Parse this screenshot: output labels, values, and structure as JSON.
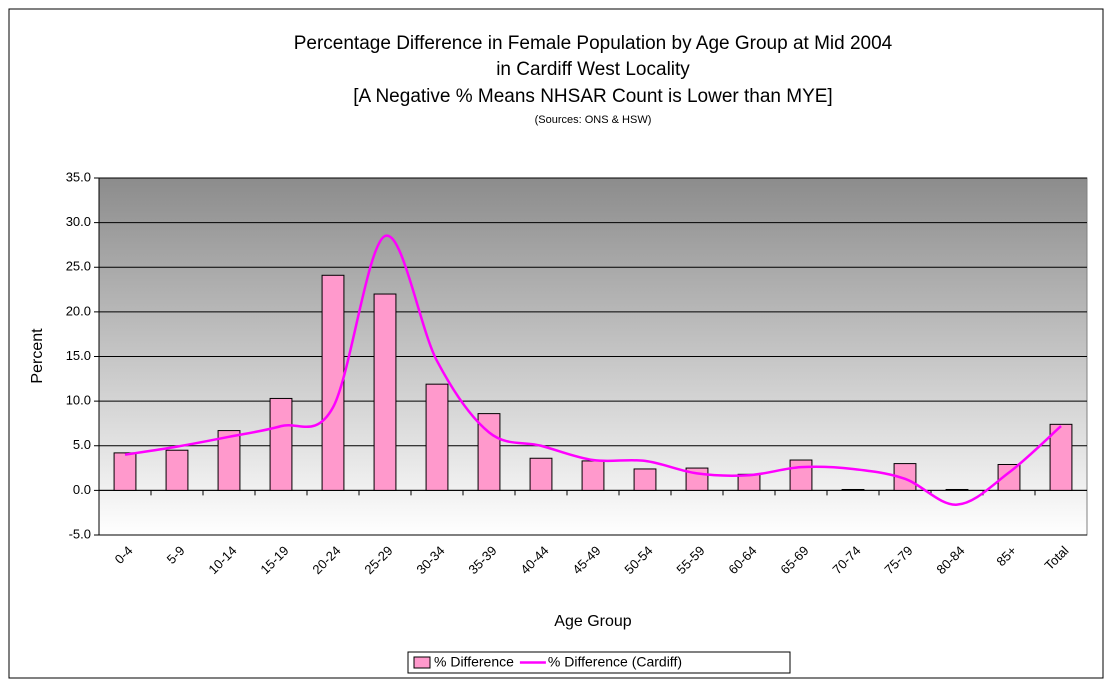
{
  "chart_data": {
    "type": "bar",
    "title": "Percentage Difference in Female Population by Age Group at Mid 2004",
    "subtitle": "in Cardiff West Locality",
    "note": "[A Negative % Means NHSAR Count is Lower than MYE]",
    "source": "(Sources: ONS & HSW)",
    "x_label": "Age Group",
    "y_label": "Percent",
    "categories": [
      "0-4",
      "5-9",
      "10-14",
      "15-19",
      "20-24",
      "25-29",
      "30-34",
      "35-39",
      "40-44",
      "45-49",
      "50-54",
      "55-59",
      "60-64",
      "65-69",
      "70-74",
      "75-79",
      "80-84",
      "85+",
      "Total"
    ],
    "series": [
      {
        "name": "% Difference",
        "type": "bar",
        "color": "#ff99cc",
        "values": [
          4.2,
          4.5,
          6.7,
          10.3,
          24.1,
          22.0,
          11.9,
          8.6,
          3.6,
          3.3,
          2.4,
          2.5,
          1.8,
          3.4,
          0.1,
          3.0,
          0.1,
          2.9,
          7.4
        ]
      },
      {
        "name": "% Difference (Cardiff)",
        "type": "line",
        "color": "#ff00ff",
        "values": [
          4.0,
          4.9,
          6.0,
          7.2,
          9.3,
          28.5,
          14.5,
          6.5,
          5.0,
          3.4,
          3.3,
          1.9,
          1.7,
          2.6,
          2.4,
          1.3,
          -1.6,
          2.0,
          7.2
        ]
      }
    ],
    "ylim": [
      -5,
      35
    ],
    "yticks": [
      {
        "value": -5,
        "label": "-5.0"
      },
      {
        "value": 0,
        "label": "0.0"
      },
      {
        "value": 5,
        "label": "5.0"
      },
      {
        "value": 10,
        "label": "10.0"
      },
      {
        "value": 15,
        "label": "15.0"
      },
      {
        "value": 20,
        "label": "20.0"
      },
      {
        "value": 25,
        "label": "25.0"
      },
      {
        "value": 30,
        "label": "30.0"
      },
      {
        "value": 35,
        "label": "35.0"
      }
    ],
    "grid": true
  }
}
